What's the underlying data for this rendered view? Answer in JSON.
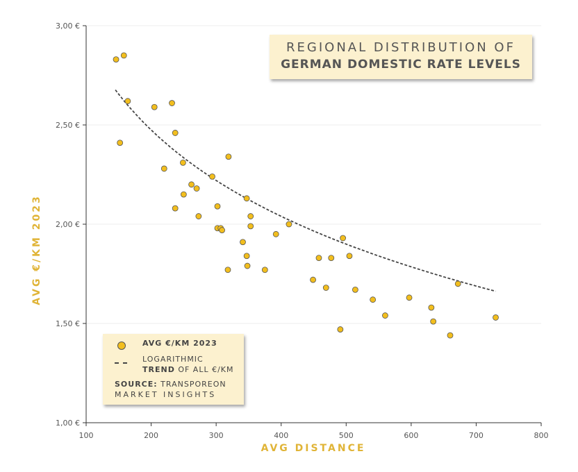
{
  "chart_data": {
    "type": "scatter",
    "title_line1": "REGIONAL DISTRIBUTION OF",
    "title_line2": "GERMAN DOMESTIC RATE LEVELS",
    "xlabel": "AVG DISTANCE",
    "ylabel": "AVG €/KM 2023",
    "xlim": [
      100,
      800
    ],
    "ylim": [
      1.0,
      3.0
    ],
    "x_ticks": [
      100,
      200,
      300,
      400,
      500,
      600,
      700,
      800
    ],
    "x_tick_labels": [
      "100",
      "200",
      "300",
      "400",
      "500",
      "600",
      "700",
      "800"
    ],
    "y_ticks": [
      1.0,
      1.5,
      2.0,
      2.5,
      3.0
    ],
    "y_tick_labels": [
      "1,00 €",
      "1,50 €",
      "2,00 €",
      "2,50 €",
      "3,00 €"
    ],
    "grid": true,
    "series": [
      {
        "name": "AVG €/KM 2023",
        "points": [
          [
            146,
            2.83
          ],
          [
            158,
            2.85
          ],
          [
            164,
            2.62
          ],
          [
            152,
            2.41
          ],
          [
            205,
            2.59
          ],
          [
            232,
            2.61
          ],
          [
            237,
            2.46
          ],
          [
            220,
            2.28
          ],
          [
            249,
            2.31
          ],
          [
            262,
            2.2
          ],
          [
            270,
            2.18
          ],
          [
            250,
            2.15
          ],
          [
            237,
            2.08
          ],
          [
            273,
            2.04
          ],
          [
            294,
            2.24
          ],
          [
            319,
            2.34
          ],
          [
            302,
            2.09
          ],
          [
            302,
            1.98
          ],
          [
            307,
            1.98
          ],
          [
            309,
            1.97
          ],
          [
            347,
            2.13
          ],
          [
            353,
            2.04
          ],
          [
            353,
            1.99
          ],
          [
            341,
            1.91
          ],
          [
            392,
            1.95
          ],
          [
            412,
            2.0
          ],
          [
            347,
            1.84
          ],
          [
            348,
            1.79
          ],
          [
            318,
            1.77
          ],
          [
            375,
            1.77
          ],
          [
            458,
            1.83
          ],
          [
            477,
            1.83
          ],
          [
            495,
            1.93
          ],
          [
            505,
            1.84
          ],
          [
            449,
            1.72
          ],
          [
            469,
            1.68
          ],
          [
            514,
            1.67
          ],
          [
            541,
            1.62
          ],
          [
            560,
            1.54
          ],
          [
            597,
            1.63
          ],
          [
            631,
            1.58
          ],
          [
            634,
            1.51
          ],
          [
            672,
            1.7
          ],
          [
            660,
            1.44
          ],
          [
            491,
            1.47
          ],
          [
            730,
            1.53
          ]
        ]
      },
      {
        "name": "LOGARITHMIC TREND OF ALL €/KM",
        "kind": "trendline",
        "x_range": [
          145,
          730
        ],
        "log_fit": {
          "a": 5.8,
          "b": -0.6276
        }
      }
    ],
    "legend": {
      "marker_label": "AVG €/KM 2023",
      "trend_line1": "LOGARITHMIC",
      "trend_bold": "TREND",
      "trend_rest": "OF ALL €/KM",
      "source_bold": "SOURCE:",
      "source_text": "TRANSPOREON",
      "source_line2": "MARKET INSIGHTS",
      "position": "bottom-left"
    },
    "colors": {
      "point_fill": "#f2be1e",
      "point_stroke": "#555555",
      "trend": "#444444",
      "axis_title": "#e0b437",
      "box_bg": "#fcf1cf",
      "grid": "#eeeeee"
    }
  }
}
